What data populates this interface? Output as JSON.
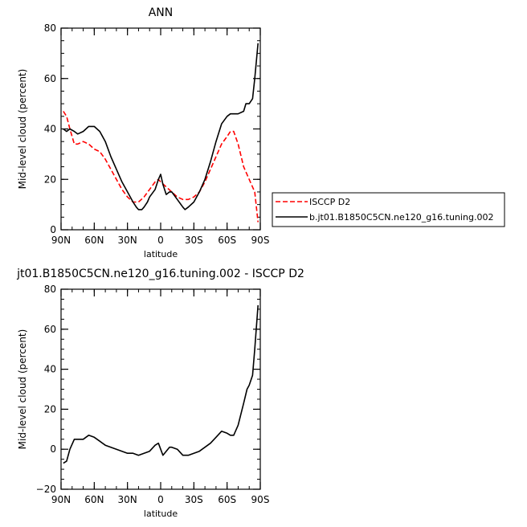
{
  "chart_data": [
    {
      "type": "line",
      "title": "ANN",
      "xlabel": "latitude",
      "ylabel": "Mid-level cloud (percent)",
      "xlim": [
        90,
        -90
      ],
      "ylim": [
        0,
        80
      ],
      "x_ticks": [
        90,
        60,
        30,
        0,
        -30,
        -60,
        -90
      ],
      "x_tick_labels": [
        "90N",
        "60N",
        "30N",
        "0",
        "30S",
        "60S",
        "90S"
      ],
      "y_ticks": [
        0,
        20,
        40,
        60,
        80
      ],
      "y_tick_labels": [
        "0",
        "20",
        "40",
        "60",
        "80"
      ],
      "legend": "outside-right",
      "series": [
        {
          "name": "ISCCP D2",
          "color": "#ff0000",
          "dash": "dashed",
          "x": [
            88,
            85,
            82,
            78,
            75,
            70,
            65,
            60,
            55,
            50,
            45,
            40,
            35,
            30,
            25,
            20,
            15,
            10,
            5,
            2,
            0,
            -5,
            -10,
            -15,
            -20,
            -25,
            -30,
            -35,
            -40,
            -45,
            -50,
            -55,
            -60,
            -63,
            -66,
            -70,
            -75,
            -80,
            -85,
            -88
          ],
          "y": [
            47,
            45,
            40,
            34,
            34,
            35,
            34,
            32,
            31,
            28,
            24,
            20,
            16,
            13,
            11,
            11,
            13,
            16,
            19,
            20,
            19,
            17,
            15,
            13,
            12,
            12,
            13,
            15,
            19,
            24,
            29,
            34,
            37,
            39,
            39,
            34,
            25,
            20,
            15,
            3
          ]
        },
        {
          "name": "b.jt01.B1850C5CN.ne120_g16.tuning.002",
          "color": "#000000",
          "dash": "solid",
          "x": [
            88,
            85,
            82,
            78,
            75,
            70,
            65,
            60,
            55,
            50,
            45,
            40,
            35,
            30,
            25,
            22,
            20,
            17,
            15,
            12,
            10,
            5,
            2,
            0,
            -2,
            -5,
            -8,
            -10,
            -15,
            -20,
            -22,
            -25,
            -30,
            -35,
            -40,
            -45,
            -50,
            -55,
            -60,
            -63,
            -66,
            -70,
            -75,
            -77,
            -80,
            -83,
            -85,
            -88
          ],
          "y": [
            40,
            39,
            40,
            39,
            38,
            39,
            41,
            41,
            39,
            35,
            29,
            24,
            19,
            15,
            11,
            9,
            8,
            8,
            9,
            11,
            13,
            16,
            20,
            22,
            18,
            14,
            15,
            15,
            12,
            9,
            8,
            9,
            11,
            15,
            20,
            27,
            35,
            42,
            45,
            46,
            46,
            46,
            47,
            50,
            50,
            52,
            60,
            74
          ]
        }
      ]
    },
    {
      "type": "line",
      "title": "jt01.B1850C5CN.ne120_g16.tuning.002 - ISCCP D2",
      "xlabel": "latitude",
      "ylabel": "Mid-level cloud (percent)",
      "xlim": [
        90,
        -90
      ],
      "ylim": [
        -20,
        80
      ],
      "x_ticks": [
        90,
        60,
        30,
        0,
        -30,
        -60,
        -90
      ],
      "x_tick_labels": [
        "90N",
        "60N",
        "30N",
        "0",
        "30S",
        "60S",
        "90S"
      ],
      "y_ticks": [
        -20,
        0,
        20,
        40,
        60,
        80
      ],
      "y_tick_labels": [
        "−20",
        "0",
        "20",
        "40",
        "60",
        "80"
      ],
      "series": [
        {
          "color": "#000000",
          "dash": "solid",
          "x": [
            88,
            85,
            82,
            78,
            75,
            70,
            65,
            60,
            55,
            50,
            45,
            40,
            35,
            30,
            25,
            20,
            15,
            10,
            5,
            2,
            0,
            -2,
            -5,
            -8,
            -10,
            -15,
            -20,
            -25,
            -30,
            -35,
            -40,
            -45,
            -50,
            -55,
            -60,
            -63,
            -66,
            -70,
            -75,
            -78,
            -80,
            -83,
            -85,
            -88
          ],
          "y": [
            -7,
            -6,
            0,
            5,
            5,
            5,
            7,
            6,
            4,
            2,
            1,
            0,
            -1,
            -2,
            -2,
            -3,
            -2,
            -1,
            2,
            3,
            0,
            -3,
            -1,
            1,
            1,
            0,
            -3,
            -3,
            -2,
            -1,
            1,
            3,
            6,
            9,
            8,
            7,
            7,
            12,
            23,
            30,
            32,
            37,
            50,
            72
          ]
        }
      ]
    }
  ]
}
